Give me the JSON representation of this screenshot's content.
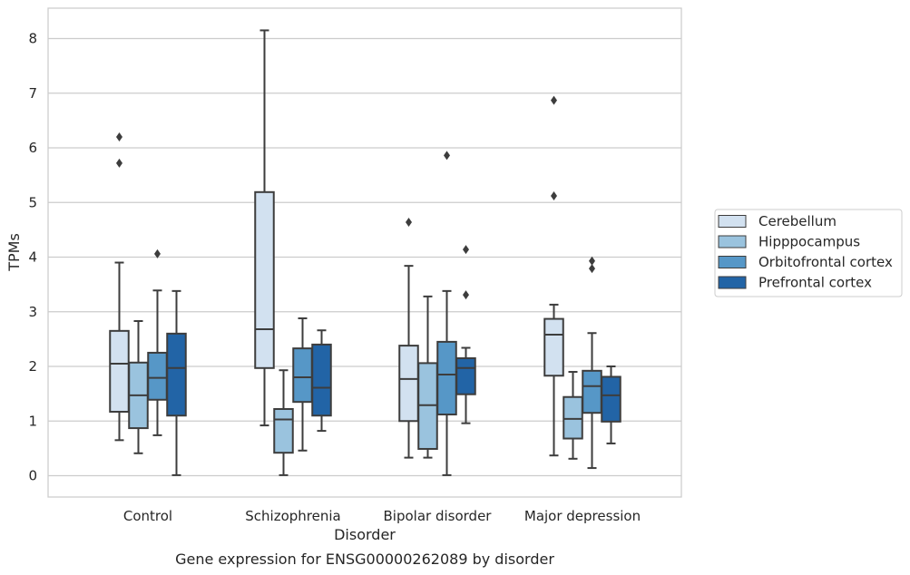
{
  "chart_data": {
    "type": "box",
    "xlabel": "Disorder",
    "ylabel": "TPMs",
    "caption": "Gene expression for ENSG00000262089 by disorder",
    "ylim": [
      -0.4,
      8.55
    ],
    "yticks": [
      "0",
      "1",
      "2",
      "3",
      "4",
      "5",
      "6",
      "7",
      "8"
    ],
    "grid": true,
    "legend_position": "right",
    "categories": [
      "Control",
      "Schizophrenia",
      "Bipolar disorder",
      "Major depression"
    ],
    "series": [
      {
        "name": "Cerebellum",
        "color": "#d2e1f0",
        "boxes": [
          {
            "min": 0.65,
            "q1": 1.17,
            "median": 2.05,
            "q3": 2.65,
            "max": 3.9,
            "outliers": [
              5.72,
              6.2
            ]
          },
          {
            "min": 0.92,
            "q1": 1.97,
            "median": 2.68,
            "q3": 5.19,
            "max": 8.15,
            "outliers": []
          },
          {
            "min": 0.33,
            "q1": 1.0,
            "median": 1.77,
            "q3": 2.38,
            "max": 3.84,
            "outliers": [
              4.64
            ]
          },
          {
            "min": 0.37,
            "q1": 1.83,
            "median": 2.58,
            "q3": 2.87,
            "max": 3.13,
            "outliers": [
              5.12,
              6.87
            ]
          }
        ]
      },
      {
        "name": "Hipppocampus",
        "color": "#9ac3de",
        "boxes": [
          {
            "min": 0.41,
            "q1": 0.87,
            "median": 1.47,
            "q3": 2.07,
            "max": 2.83,
            "outliers": []
          },
          {
            "min": 0.01,
            "q1": 0.42,
            "median": 1.03,
            "q3": 1.22,
            "max": 1.93,
            "outliers": []
          },
          {
            "min": 0.33,
            "q1": 0.49,
            "median": 1.29,
            "q3": 2.06,
            "max": 3.28,
            "outliers": []
          },
          {
            "min": 0.31,
            "q1": 0.68,
            "median": 1.04,
            "q3": 1.44,
            "max": 1.9,
            "outliers": []
          }
        ]
      },
      {
        "name": "Orbitofrontal cortex",
        "color": "#5697c7",
        "boxes": [
          {
            "min": 0.74,
            "q1": 1.39,
            "median": 1.79,
            "q3": 2.25,
            "max": 3.39,
            "outliers": [
              4.06
            ]
          },
          {
            "min": 0.46,
            "q1": 1.35,
            "median": 1.8,
            "q3": 2.33,
            "max": 2.88,
            "outliers": []
          },
          {
            "min": 0.01,
            "q1": 1.12,
            "median": 1.85,
            "q3": 2.45,
            "max": 3.38,
            "outliers": [
              5.86
            ]
          },
          {
            "min": 0.14,
            "q1": 1.15,
            "median": 1.64,
            "q3": 1.92,
            "max": 2.61,
            "outliers": [
              3.79,
              3.93
            ]
          }
        ]
      },
      {
        "name": "Prefrontal cortex",
        "color": "#2264a6",
        "boxes": [
          {
            "min": 0.01,
            "q1": 1.1,
            "median": 1.97,
            "q3": 2.6,
            "max": 3.38,
            "outliers": []
          },
          {
            "min": 0.82,
            "q1": 1.1,
            "median": 1.61,
            "q3": 2.4,
            "max": 2.66,
            "outliers": []
          },
          {
            "min": 0.96,
            "q1": 1.49,
            "median": 1.97,
            "q3": 2.15,
            "max": 2.34,
            "outliers": [
              3.31,
              4.14
            ]
          },
          {
            "min": 0.59,
            "q1": 0.99,
            "median": 1.47,
            "q3": 1.81,
            "max": 2.0,
            "outliers": []
          }
        ]
      }
    ]
  }
}
